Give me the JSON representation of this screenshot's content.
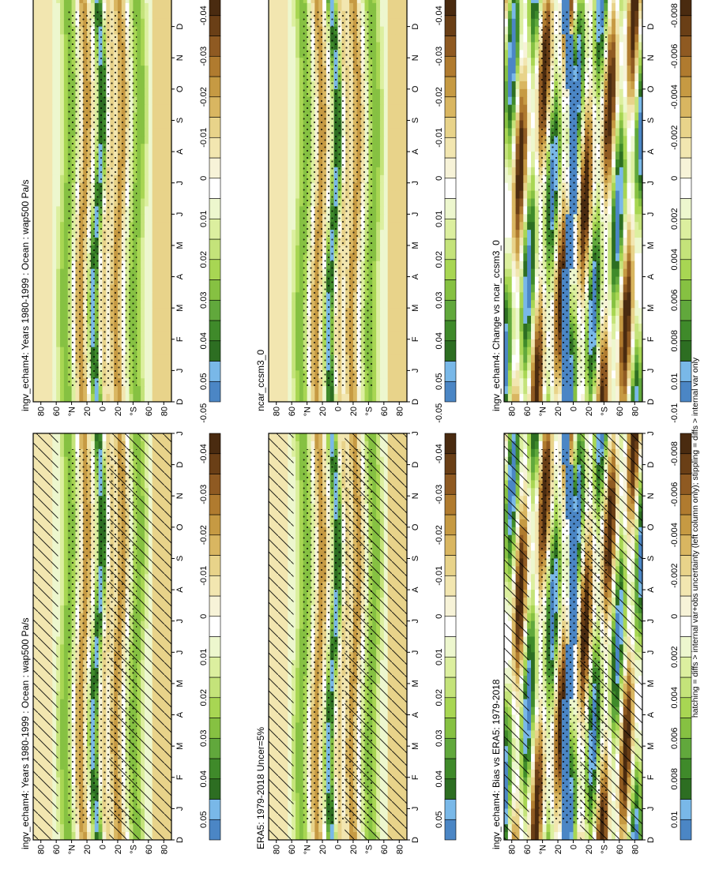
{
  "footnote": "hatching = diffs > internal var+obs uncertainty (left column only); stippling = diffs > internal var only",
  "palettes": {
    "main": [
      "#4b86c5",
      "#79b8e8",
      "#2d6e22",
      "#3f8a2a",
      "#61a83c",
      "#86c142",
      "#a8d653",
      "#c4e37a",
      "#dcef9f",
      "#edf7ce",
      "#ffffff",
      "#f7f3d8",
      "#f2e6b0",
      "#e8d38a",
      "#d9b661",
      "#c69a43",
      "#b07b2f",
      "#8f5a22",
      "#6a3f16",
      "#4a2b10"
    ]
  },
  "month_labels": [
    "D",
    "J",
    "F",
    "M",
    "A",
    "M",
    "J",
    "J",
    "A",
    "S",
    "O",
    "N",
    "D",
    "J"
  ],
  "lat_labels": [
    "80",
    "60",
    "°N",
    "20",
    "0",
    "20",
    "°S",
    "60",
    "80"
  ],
  "panels": [
    {
      "id": "p1",
      "title": "ingv_echam4: Years 1980-1999 : Ocean : wap500 Pa/s",
      "cb_labels": [
        "0.05",
        "0.04",
        "0.03",
        "0.02",
        "0.01",
        "0",
        "-0.01",
        "-0.02",
        "-0.03",
        "-0.04",
        "-0.05"
      ],
      "hatching": true,
      "stippling": true
    },
    {
      "id": "p2",
      "title": "ingv_echam4: Years 1980-1999 : Ocean : wap500 Pa/s",
      "cb_labels": [
        "0.05",
        "0.04",
        "0.03",
        "0.02",
        "0.01",
        "0",
        "-0.01",
        "-0.02",
        "-0.03",
        "-0.04",
        "-0.05"
      ],
      "hatching": false,
      "stippling": true
    },
    {
      "id": "p3",
      "title": "ERA5: 1979-2018 Uncer=5%",
      "cb_labels": [
        "0.05",
        "0.04",
        "0.03",
        "0.02",
        "0.01",
        "0",
        "-0.01",
        "-0.02",
        "-0.03",
        "-0.04",
        "-0.05"
      ],
      "hatching": true,
      "stippling": true
    },
    {
      "id": "p4",
      "title": "ncar_ccsm3_0",
      "cb_labels": [
        "0.05",
        "0.04",
        "0.03",
        "0.02",
        "0.01",
        "0",
        "-0.01",
        "-0.02",
        "-0.03",
        "-0.04",
        "-0.05"
      ],
      "hatching": false,
      "stippling": true
    },
    {
      "id": "p5",
      "title": "ingv_echam4: Bias vs ERA5: 1979-2018",
      "cb_labels": [
        "0.01",
        "0.008",
        "0.006",
        "0.004",
        "0.002",
        "0",
        "-0.002",
        "-0.004",
        "-0.006",
        "-0.008",
        "-0.01"
      ],
      "hatching": true,
      "stippling": true
    },
    {
      "id": "p6",
      "title": "ingv_echam4: Change vs ncar_ccsm3_0",
      "cb_labels": [
        "0.01",
        "0.008",
        "0.006",
        "0.004",
        "0.002",
        "0",
        "-0.002",
        "-0.004",
        "-0.006",
        "-0.008",
        "-0.01"
      ],
      "hatching": false,
      "stippling": true
    }
  ],
  "chart_data": [
    {
      "type": "heatmap",
      "title": "ingv_echam4: Years 1980-1999 : Ocean : wap500 Pa/s",
      "x": "month",
      "y": "latitude",
      "ylim": [
        -90,
        90
      ],
      "colorbar_range": [
        -0.05,
        0.05
      ],
      "units": "Pa/s"
    },
    {
      "type": "heatmap",
      "title": "ingv_echam4: Years 1980-1999 : Ocean : wap500 Pa/s",
      "x": "month",
      "y": "latitude",
      "ylim": [
        -90,
        90
      ],
      "colorbar_range": [
        -0.05,
        0.05
      ],
      "units": "Pa/s"
    },
    {
      "type": "heatmap",
      "title": "ERA5: 1979-2018 Uncer=5%",
      "x": "month",
      "y": "latitude",
      "ylim": [
        -90,
        90
      ],
      "colorbar_range": [
        -0.05,
        0.05
      ]
    },
    {
      "type": "heatmap",
      "title": "ncar_ccsm3_0",
      "x": "month",
      "y": "latitude",
      "ylim": [
        -90,
        90
      ],
      "colorbar_range": [
        -0.05,
        0.05
      ]
    },
    {
      "type": "heatmap",
      "title": "ingv_echam4: Bias vs ERA5: 1979-2018",
      "x": "month",
      "y": "latitude",
      "ylim": [
        -90,
        90
      ],
      "colorbar_range": [
        -0.01,
        0.01
      ]
    },
    {
      "type": "heatmap",
      "title": "ingv_echam4: Change vs ncar_ccsm3_0",
      "x": "month",
      "y": "latitude",
      "ylim": [
        -90,
        90
      ],
      "colorbar_range": [
        -0.01,
        0.01
      ]
    }
  ]
}
